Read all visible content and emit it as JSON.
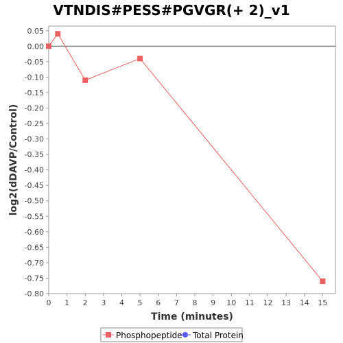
{
  "chart_data": {
    "type": "line",
    "title": "VTNDIS#PESS#PGVGR(+ 2)_v1",
    "xlabel": "Time (minutes)",
    "ylabel": "log2(dDAVP/Control)",
    "xlim": [
      0,
      15.7
    ],
    "ylim": [
      -0.8,
      0.065
    ],
    "x_ticks": [
      0,
      1,
      2,
      3,
      4,
      5,
      6,
      7,
      8,
      9,
      10,
      11,
      12,
      13,
      14,
      15
    ],
    "y_ticks": [
      0.05,
      0.0,
      -0.05,
      -0.1,
      -0.15,
      -0.2,
      -0.25,
      -0.3,
      -0.35,
      -0.4,
      -0.45,
      -0.5,
      -0.55,
      -0.6,
      -0.65,
      -0.7,
      -0.75,
      -0.8
    ],
    "y_tick_labels": [
      "0.05",
      "0.00",
      "-0.05",
      "-0.10",
      "-0.15",
      "-0.20",
      "-0.25",
      "-0.30",
      "-0.35",
      "-0.40",
      "-0.45",
      "-0.50",
      "-0.55",
      "-0.60",
      "-0.65",
      "-0.70",
      "-0.75",
      "-0.80"
    ],
    "reference_line_y": 0,
    "grid": false,
    "legend_position": "bottom",
    "series": [
      {
        "name": "Phosphopeptide",
        "color": "#e8605f",
        "marker": "square",
        "x": [
          0,
          0.5,
          2,
          5,
          15
        ],
        "y": [
          0.0,
          0.04,
          -0.11,
          -0.04,
          -0.76
        ]
      },
      {
        "name": "Total Protein",
        "color": "#5b5bf0",
        "marker": "circle",
        "x": [],
        "y": []
      }
    ]
  }
}
